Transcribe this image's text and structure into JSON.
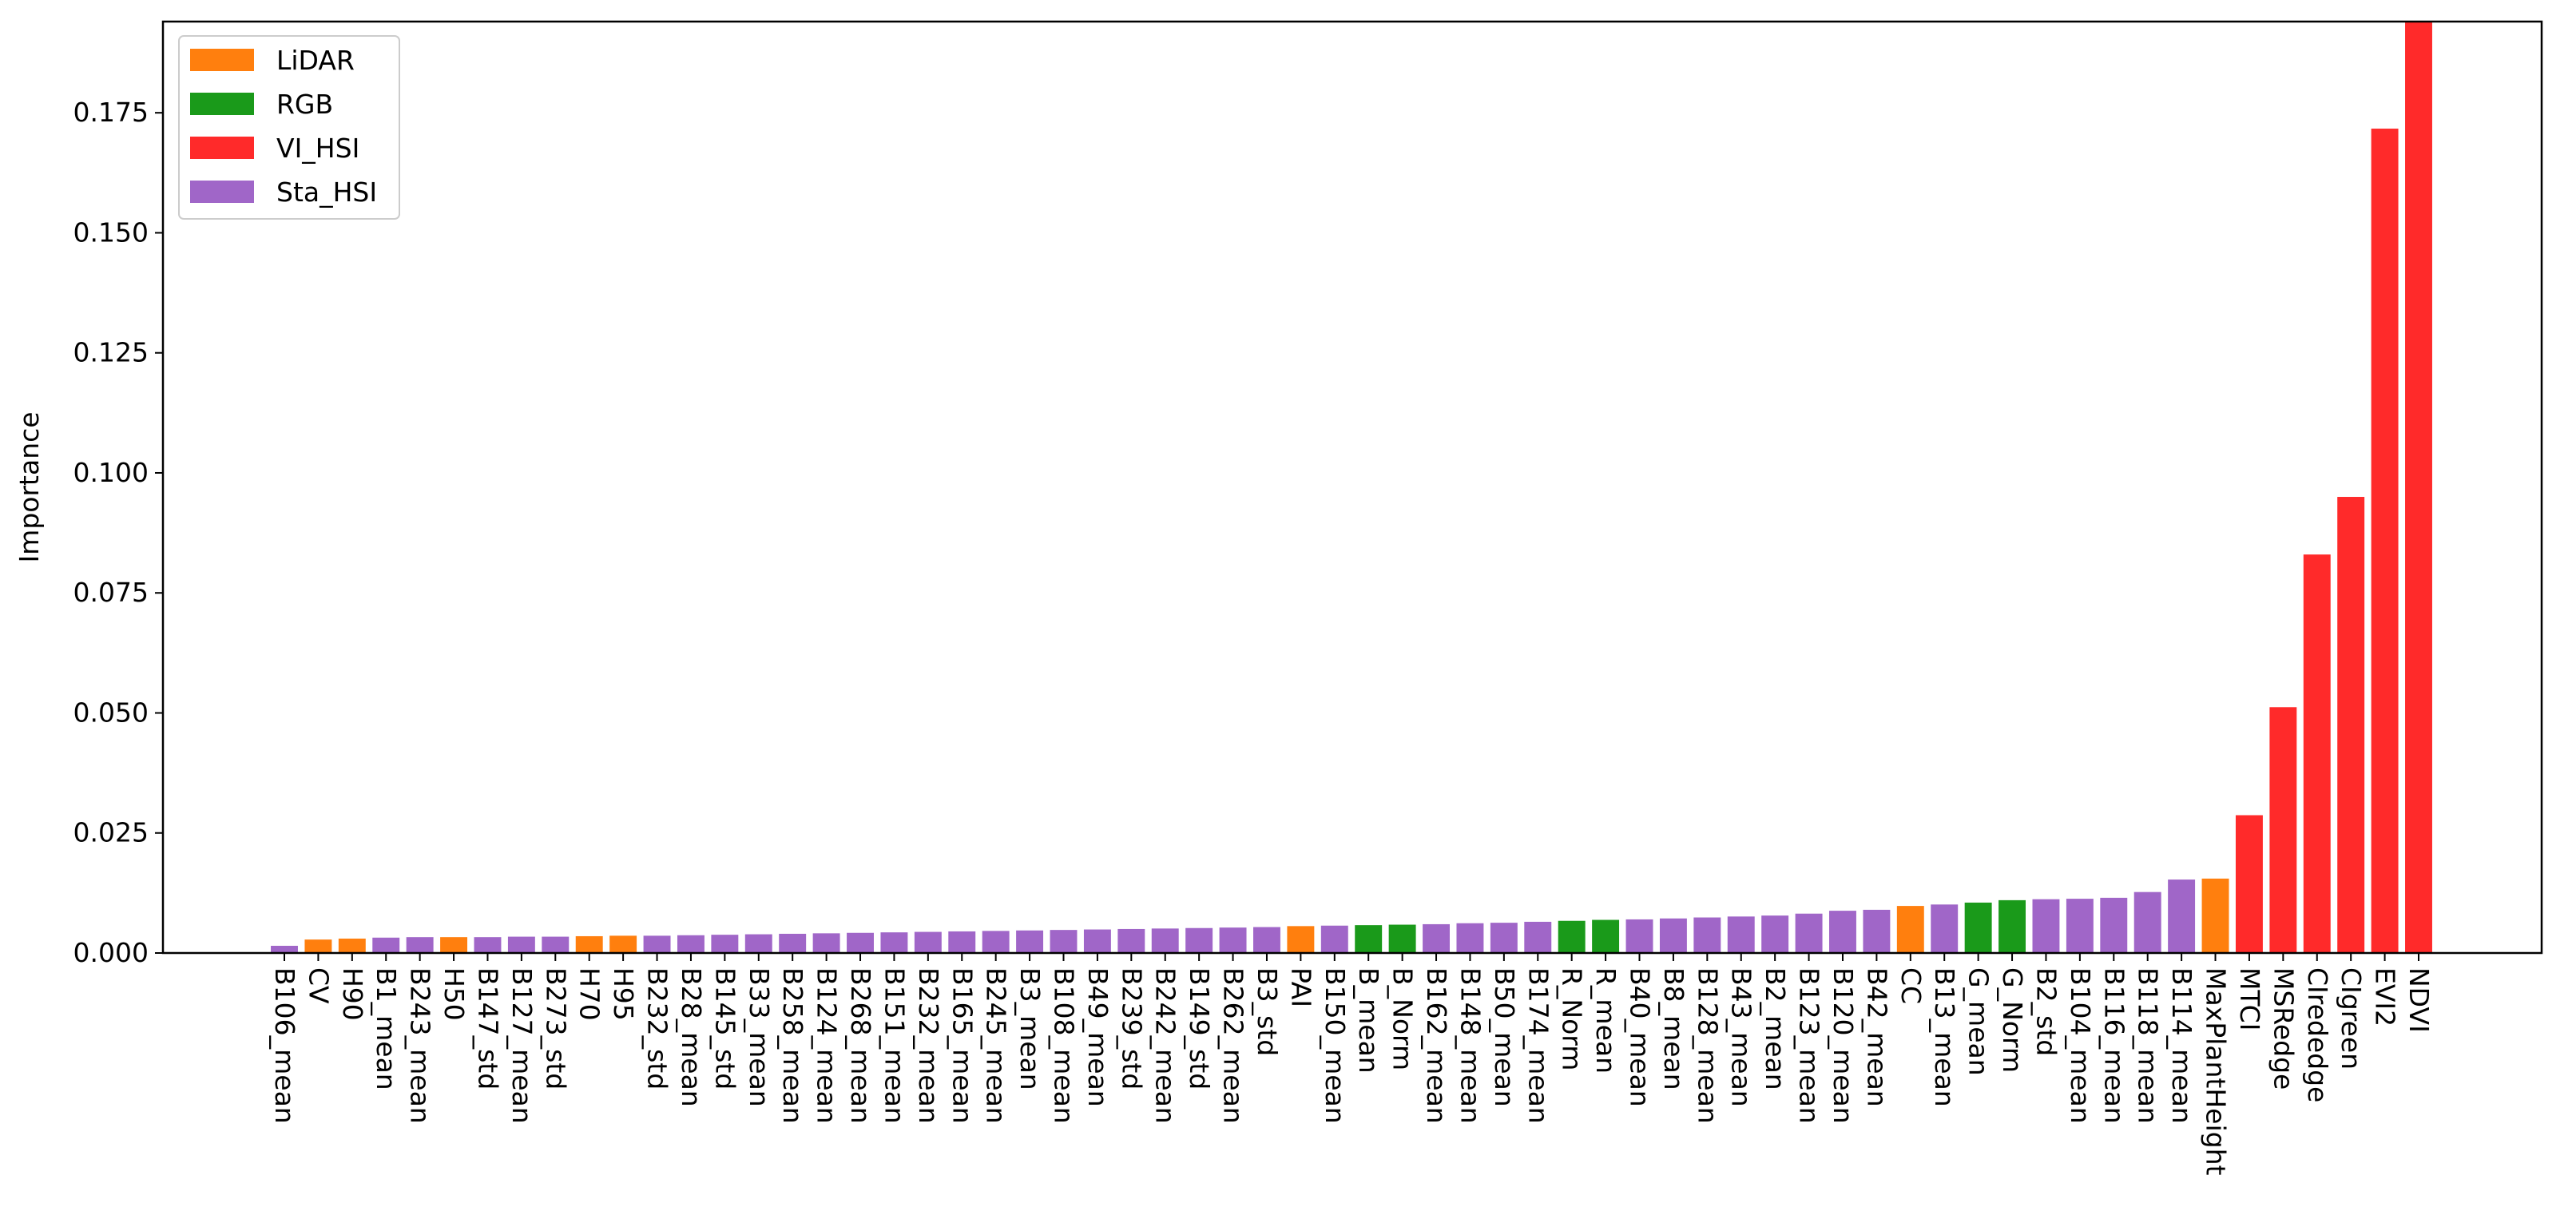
{
  "chart_data": {
    "type": "bar",
    "y_label": "Importance",
    "categories": [
      "B106_mean",
      "CV",
      "H90",
      "B1_mean",
      "B243_mean",
      "H50",
      "B147_std",
      "B127_mean",
      "B273_std",
      "H70",
      "H95",
      "B232_std",
      "B28_mean",
      "B145_std",
      "B33_mean",
      "B258_mean",
      "B124_mean",
      "B268_mean",
      "B151_mean",
      "B232_mean",
      "B165_mean",
      "B245_mean",
      "B3_mean",
      "B108_mean",
      "B49_mean",
      "B239_std",
      "B242_mean",
      "B149_std",
      "B262_mean",
      "B3_std",
      "PAI",
      "B150_mean",
      "B_mean",
      "B_Norm",
      "B162_mean",
      "B148_mean",
      "B50_mean",
      "B174_mean",
      "R_Norm",
      "R_mean",
      "B40_mean",
      "B8_mean",
      "B128_mean",
      "B43_mean",
      "B2_mean",
      "B123_mean",
      "B120_mean",
      "B42_mean",
      "CC",
      "B13_mean",
      "G_mean",
      "G_Norm",
      "B2_std",
      "B104_mean",
      "B116_mean",
      "B118_mean",
      "B114_mean",
      "MaxPlantHeight",
      "MTCI",
      "MSRedge",
      "CIrededge",
      "CIgreen",
      "EVI2",
      "NDVI"
    ],
    "values": [
      0.0015,
      0.0028,
      0.003,
      0.0032,
      0.0033,
      0.0033,
      0.0033,
      0.0034,
      0.0034,
      0.0035,
      0.0036,
      0.0036,
      0.0037,
      0.0038,
      0.0039,
      0.004,
      0.0041,
      0.0042,
      0.0043,
      0.0044,
      0.0045,
      0.0046,
      0.0047,
      0.0048,
      0.0049,
      0.005,
      0.0051,
      0.0052,
      0.0053,
      0.0054,
      0.0056,
      0.0057,
      0.0058,
      0.0059,
      0.006,
      0.0062,
      0.0063,
      0.0065,
      0.0067,
      0.0069,
      0.007,
      0.0072,
      0.0074,
      0.0076,
      0.0078,
      0.0082,
      0.0088,
      0.009,
      0.0098,
      0.0101,
      0.0105,
      0.011,
      0.0112,
      0.0113,
      0.0115,
      0.0127,
      0.0153,
      0.0155,
      0.0287,
      0.0512,
      0.083,
      0.095,
      0.1717,
      0.194
    ],
    "bar_colors": [
      "#a066c8",
      "#ff7f0e",
      "#ff7f0e",
      "#a066c8",
      "#a066c8",
      "#ff7f0e",
      "#a066c8",
      "#a066c8",
      "#a066c8",
      "#ff7f0e",
      "#ff7f0e",
      "#a066c8",
      "#a066c8",
      "#a066c8",
      "#a066c8",
      "#a066c8",
      "#a066c8",
      "#a066c8",
      "#a066c8",
      "#a066c8",
      "#a066c8",
      "#a066c8",
      "#a066c8",
      "#a066c8",
      "#a066c8",
      "#a066c8",
      "#a066c8",
      "#a066c8",
      "#a066c8",
      "#a066c8",
      "#ff7f0e",
      "#a066c8",
      "#1a9a1a",
      "#1a9a1a",
      "#a066c8",
      "#a066c8",
      "#a066c8",
      "#a066c8",
      "#1a9a1a",
      "#1a9a1a",
      "#a066c8",
      "#a066c8",
      "#a066c8",
      "#a066c8",
      "#a066c8",
      "#a066c8",
      "#a066c8",
      "#a066c8",
      "#ff7f0e",
      "#a066c8",
      "#1a9a1a",
      "#1a9a1a",
      "#a066c8",
      "#a066c8",
      "#a066c8",
      "#a066c8",
      "#a066c8",
      "#ff7f0e",
      "#ff2a2a",
      "#ff2a2a",
      "#ff2a2a",
      "#ff2a2a",
      "#ff2a2a",
      "#ff2a2a"
    ],
    "legend": [
      {
        "name": "LiDAR",
        "color": "#ff7f0e"
      },
      {
        "name": "RGB",
        "color": "#1a9a1a"
      },
      {
        "name": "VI_HSI",
        "color": "#ff2a2a"
      },
      {
        "name": "Sta_HSI",
        "color": "#a066c8"
      }
    ],
    "legend_position": "upper left",
    "ylim": [
      0,
      0.194
    ],
    "yticks": [
      {
        "value": 0,
        "label": "0.000"
      },
      0.025,
      {
        "value": 0.05,
        "label": "0.050"
      },
      0.075,
      {
        "value": 0.1,
        "label": "0.100"
      },
      0.125,
      {
        "value": 0.15,
        "label": "0.150"
      },
      0.175
    ]
  }
}
